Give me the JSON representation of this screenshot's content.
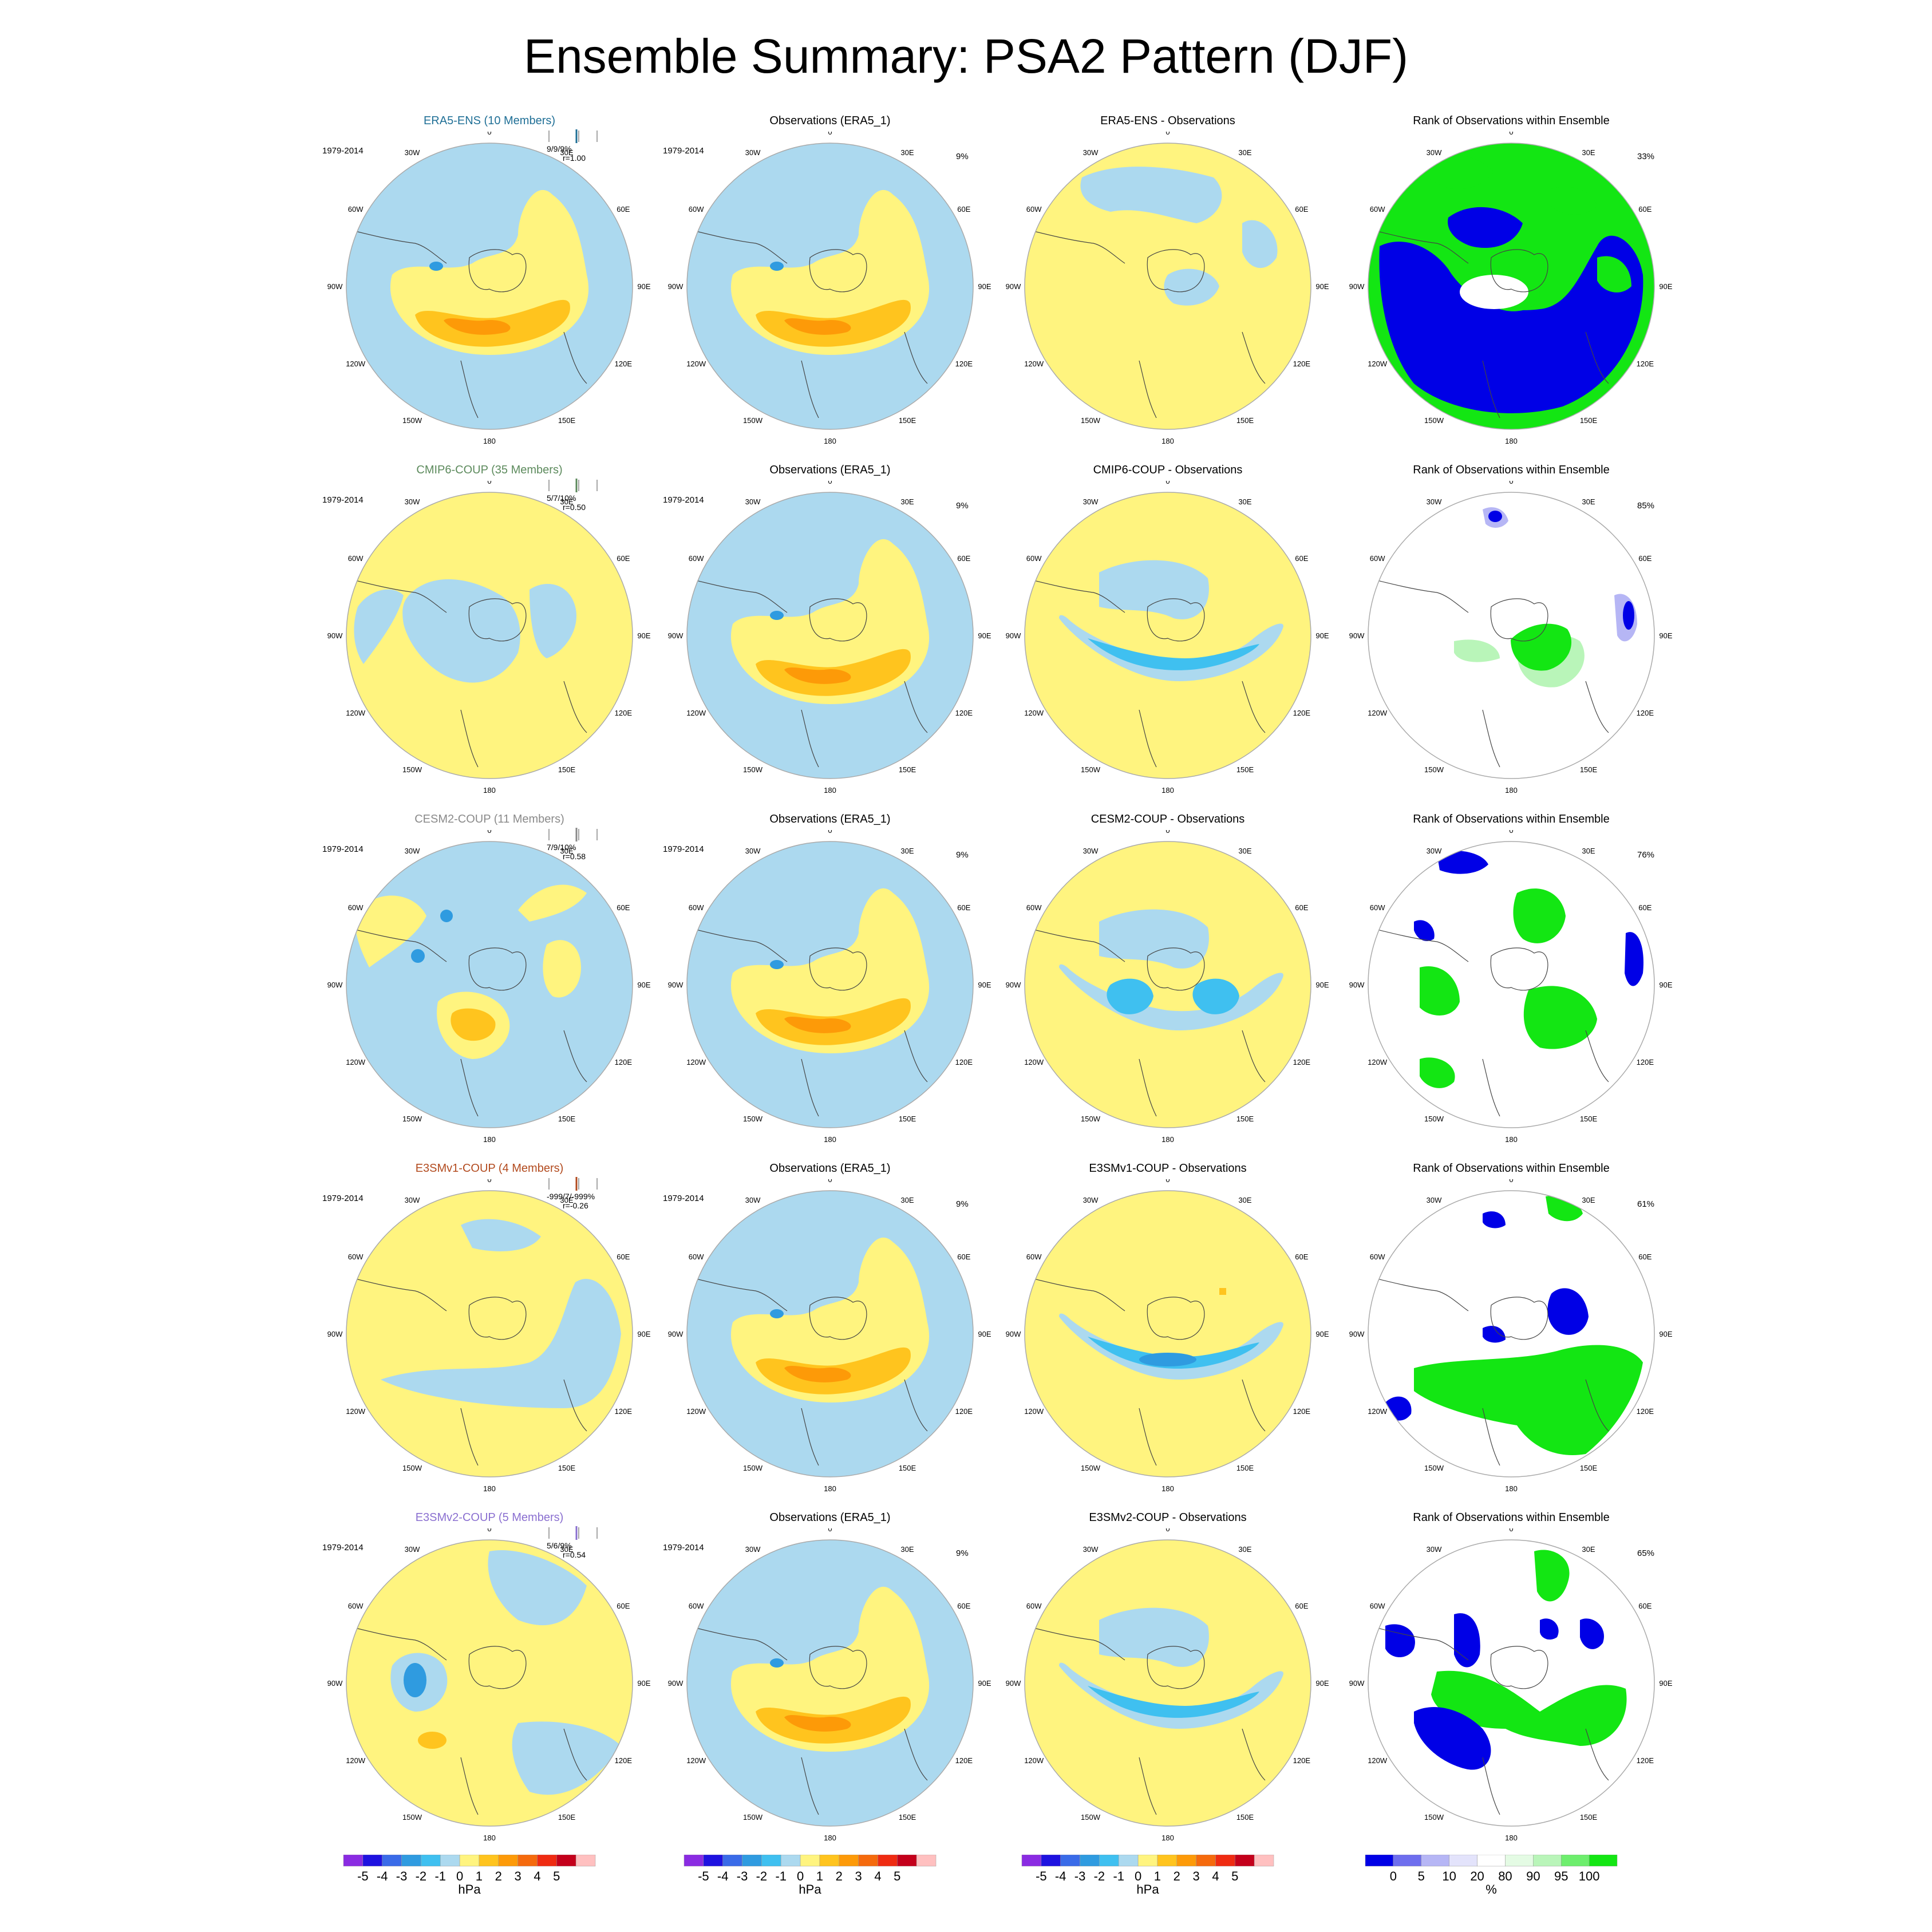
{
  "title": "Ensemble Summary: PSA2 Pattern (DJF)",
  "colors": {
    "anomaly_levels": [
      "#8a2be2",
      "#1e12e0",
      "#3a6be8",
      "#2f9be0",
      "#3fc0f0",
      "#acd9ef",
      "#fff47f",
      "#ffc41e",
      "#fd9a08",
      "#f56a0d",
      "#ef2b12",
      "#c4001b",
      "#ffc0c0"
    ],
    "rank_levels": [
      "#0000e6",
      "#6e6eee",
      "#b6b6f5",
      "#e3e3fb",
      "#ffffff",
      "#e4fbe4",
      "#b9f5b9",
      "#6dee6d",
      "#13e613"
    ],
    "land": "#444444"
  },
  "common": {
    "period": "1979-2014",
    "obs_title": "Observations (ERA5_1)",
    "obs_pct": "9%",
    "rank_title": "Rank of Observations within Ensemble",
    "lon_labels": [
      "0",
      "30E",
      "60E",
      "90E",
      "120E",
      "150E",
      "180",
      "150W",
      "120W",
      "90W",
      "60W",
      "30W"
    ]
  },
  "rows": [
    {
      "ens_title": "ERA5-ENS (10 Members)",
      "ens_color": "#1f6f96",
      "stat1": "9/9/9%",
      "stat2": "r=1.00",
      "diff_title": "ERA5-ENS - Observations",
      "rank_pct": "33%"
    },
    {
      "ens_title": "CMIP6-COUP (35 Members)",
      "ens_color": "#5c8a5c",
      "stat1": "5/7/10%",
      "stat2": "r=0.50",
      "diff_title": "CMIP6-COUP - Observations",
      "rank_pct": "85%"
    },
    {
      "ens_title": "CESM2-COUP (11 Members)",
      "ens_color": "#8a8a8a",
      "stat1": "7/9/10%",
      "stat2": "r=0.58",
      "diff_title": "CESM2-COUP - Observations",
      "rank_pct": "76%"
    },
    {
      "ens_title": "E3SMv1-COUP (4 Members)",
      "ens_color": "#b24a1e",
      "stat1": "-999/7/-999%",
      "stat2": "r=-0.26",
      "diff_title": "E3SMv1-COUP - Observations",
      "rank_pct": "61%"
    },
    {
      "ens_title": "E3SMv2-COUP (5 Members)",
      "ens_color": "#8a6fd0",
      "stat1": "5/6/9%",
      "stat2": "r=0.54",
      "diff_title": "E3SMv2-COUP - Observations",
      "rank_pct": "65%"
    }
  ],
  "colorbars": [
    {
      "labels": [
        "-5",
        "-4",
        "-3",
        "-2",
        "-1",
        "0",
        "1",
        "2",
        "3",
        "4",
        "5"
      ],
      "unit": "hPa"
    },
    {
      "labels": [
        "-5",
        "-4",
        "-3",
        "-2",
        "-1",
        "0",
        "1",
        "2",
        "3",
        "4",
        "5"
      ],
      "unit": "hPa"
    },
    {
      "labels": [
        "-5",
        "-4",
        "-3",
        "-2",
        "-1",
        "0",
        "1",
        "2",
        "3",
        "4",
        "5"
      ],
      "unit": "hPa"
    },
    {
      "labels": [
        "0",
        "5",
        "10",
        "20",
        "80",
        "90",
        "95",
        "100"
      ],
      "unit": "%"
    }
  ]
}
